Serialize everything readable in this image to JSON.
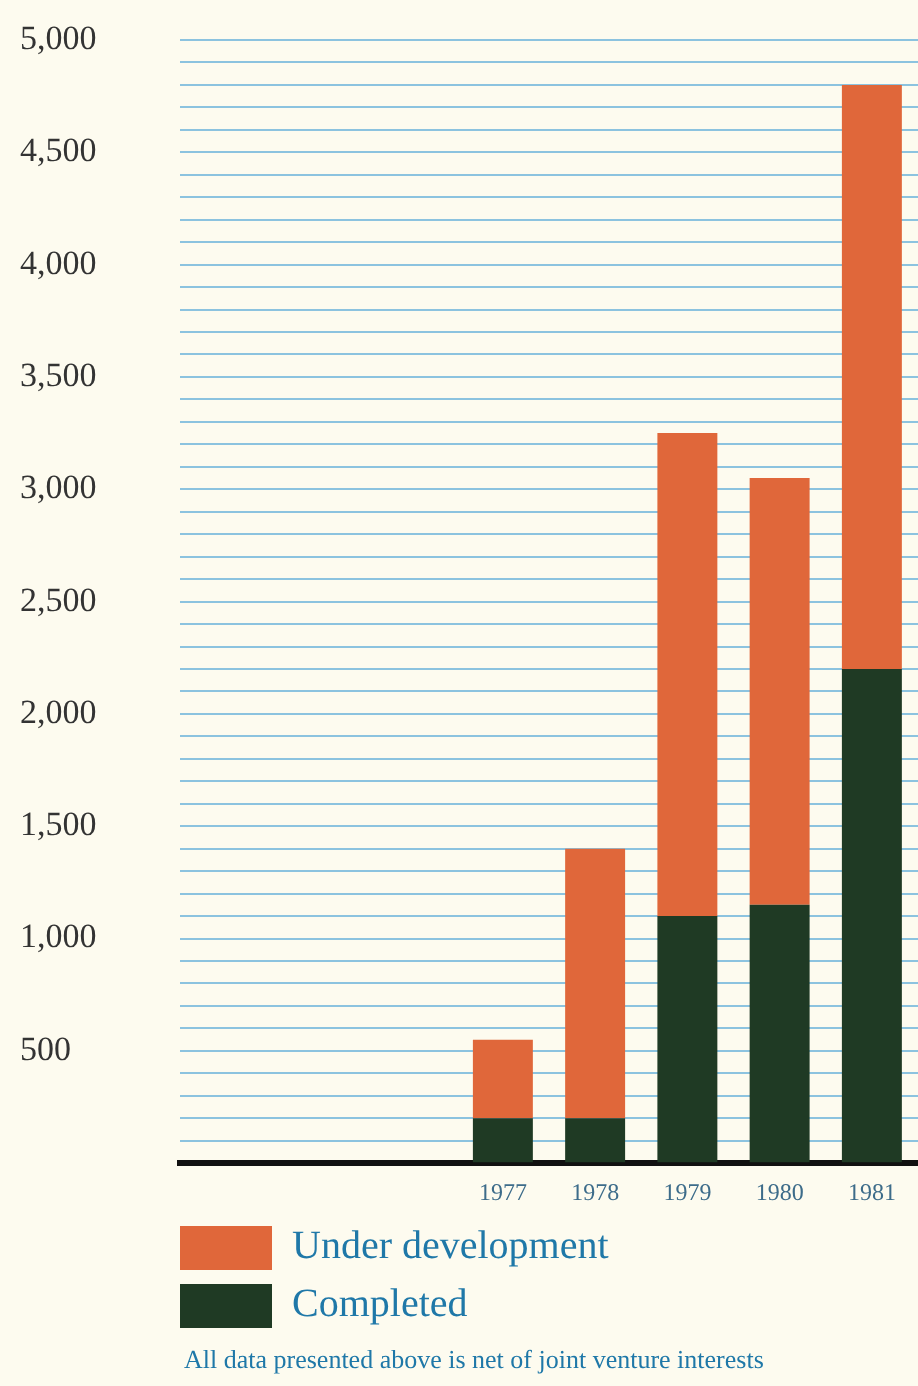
{
  "chart_data": {
    "type": "bar",
    "stacked": true,
    "categories": [
      null,
      null,
      null,
      "1977",
      "1978",
      "1979",
      "1980",
      "1981"
    ],
    "series": [
      {
        "name": "Completed",
        "color": "#1f3a24",
        "values": [
          null,
          null,
          null,
          200,
          200,
          1100,
          1150,
          2200
        ]
      },
      {
        "name": "Under development",
        "color": "#e0673a",
        "values": [
          null,
          null,
          null,
          350,
          1200,
          2150,
          1900,
          2600
        ]
      }
    ],
    "ylim": [
      0,
      5000
    ],
    "yticks": [
      {
        "value": 0,
        "label": null
      },
      {
        "value": 100,
        "label": null
      },
      {
        "value": 200,
        "label": null
      },
      {
        "value": 300,
        "label": null
      },
      {
        "value": 400,
        "label": null
      },
      {
        "value": 500,
        "label": "500"
      },
      {
        "value": 600,
        "label": null
      },
      {
        "value": 700,
        "label": null
      },
      {
        "value": 800,
        "label": null
      },
      {
        "value": 900,
        "label": null
      },
      {
        "value": 1000,
        "label": "1,000"
      },
      {
        "value": 1100,
        "label": null
      },
      {
        "value": 1200,
        "label": null
      },
      {
        "value": 1300,
        "label": null
      },
      {
        "value": 1400,
        "label": null
      },
      {
        "value": 1500,
        "label": "1,500"
      },
      {
        "value": 1600,
        "label": null
      },
      {
        "value": 1700,
        "label": null
      },
      {
        "value": 1800,
        "label": null
      },
      {
        "value": 1900,
        "label": null
      },
      {
        "value": 2000,
        "label": "2,000"
      },
      {
        "value": 2100,
        "label": null
      },
      {
        "value": 2200,
        "label": null
      },
      {
        "value": 2300,
        "label": null
      },
      {
        "value": 2400,
        "label": null
      },
      {
        "value": 2500,
        "label": "2,500"
      },
      {
        "value": 2600,
        "label": null
      },
      {
        "value": 2700,
        "label": null
      },
      {
        "value": 2800,
        "label": null
      },
      {
        "value": 2900,
        "label": null
      },
      {
        "value": 3000,
        "label": "3,000"
      },
      {
        "value": 3100,
        "label": null
      },
      {
        "value": 3200,
        "label": null
      },
      {
        "value": 3300,
        "label": null
      },
      {
        "value": 3400,
        "label": null
      },
      {
        "value": 3500,
        "label": "3,500"
      },
      {
        "value": 3600,
        "label": null
      },
      {
        "value": 3700,
        "label": null
      },
      {
        "value": 3800,
        "label": null
      },
      {
        "value": 3900,
        "label": null
      },
      {
        "value": 4000,
        "label": "4,000"
      },
      {
        "value": 4100,
        "label": null
      },
      {
        "value": 4200,
        "label": null
      },
      {
        "value": 4300,
        "label": null
      },
      {
        "value": 4400,
        "label": null
      },
      {
        "value": 4500,
        "label": "4,500"
      },
      {
        "value": 4600,
        "label": null
      },
      {
        "value": 4700,
        "label": null
      },
      {
        "value": 4800,
        "label": null
      },
      {
        "value": 4900,
        "label": null
      },
      {
        "value": 5000,
        "label": "5,000"
      }
    ],
    "grid": "y",
    "legend": "bottom left",
    "annotations": [
      "All data presented above is net of joint venture interests"
    ]
  }
}
